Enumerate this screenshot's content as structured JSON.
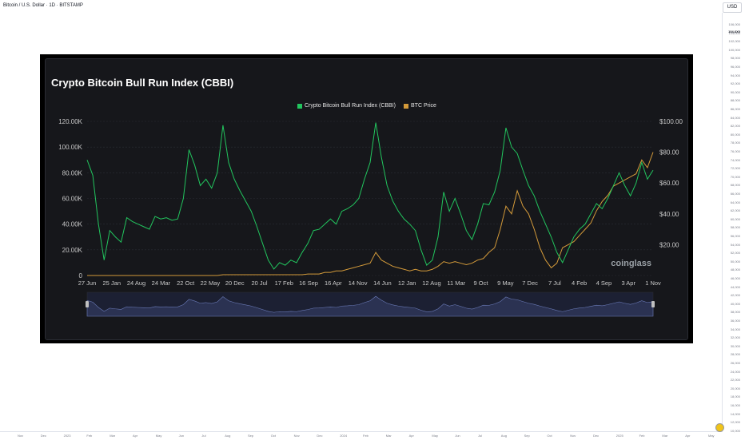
{
  "tv": {
    "symbol": "Bitcoin / U.S. Dollar · 1D · BITSTAMP",
    "currency_label": "USD",
    "price_axis_labels": [
      "106,000",
      "104,000",
      "102,000",
      "100,000",
      "98,000",
      "96,000",
      "94,000",
      "92,000",
      "90,000",
      "88,000",
      "86,000",
      "84,000",
      "82,000",
      "80,000",
      "78,000",
      "76,000",
      "74,000",
      "72,000",
      "70,000",
      "68,000",
      "66,000",
      "64,000",
      "62,000",
      "60,000",
      "58,000",
      "56,000",
      "54,000",
      "52,000",
      "50,000",
      "48,000",
      "46,000",
      "44,000",
      "42,000",
      "40,000",
      "38,000",
      "36,000",
      "34,000",
      "32,000",
      "30,000",
      "28,000",
      "26,000",
      "24,000",
      "22,000",
      "20,000",
      "18,000",
      "16,000",
      "14,000",
      "12,000",
      "10,000"
    ],
    "price_marker": "104,6X0",
    "time_axis_labels": [
      "Nov",
      "Dec",
      "2023",
      "Feb",
      "Mar",
      "Apr",
      "May",
      "Jun",
      "Jul",
      "Aug",
      "Sep",
      "Oct",
      "Nov",
      "Dec",
      "2024",
      "Feb",
      "Mar",
      "Apr",
      "May",
      "Jun",
      "Jul",
      "Aug",
      "Sep",
      "Oct",
      "Nov",
      "Dec",
      "2025",
      "Feb",
      "Mar",
      "Apr",
      "May"
    ]
  },
  "chart_data": {
    "type": "line",
    "title": "Crypto Bitcoin Bull Run Index (CBBI)",
    "watermark": "coinglass",
    "x_ticks": [
      "27 Jun",
      "25 Jan",
      "24 Aug",
      "24 Mar",
      "22 Oct",
      "22 May",
      "20 Dec",
      "20 Jul",
      "17 Feb",
      "16 Sep",
      "16 Apr",
      "14 Nov",
      "14 Jun",
      "12 Jan",
      "12 Aug",
      "11 Mar",
      "9 Oct",
      "9 May",
      "7 Dec",
      "7 Jul",
      "4 Feb",
      "4 Sep",
      "3 Apr",
      "1 Nov"
    ],
    "y_left_ticks": [
      "0",
      "20.00K",
      "40.00K",
      "60.00K",
      "80.00K",
      "100.00K",
      "120.00K"
    ],
    "y_right_ticks": [
      "$20.00",
      "$40.00",
      "$60.00",
      "$80.00",
      "$100.00"
    ],
    "ylim_left": [
      0,
      120000
    ],
    "ylim_right": [
      0,
      100
    ],
    "grid": true,
    "legend_position": "top",
    "colors": {
      "cbbi": "#22c55e",
      "btc": "#d39a3a",
      "navigator": "#2b3252",
      "background": "#16171b"
    },
    "series": [
      {
        "name": "Crypto Bitcoin Bull Run Index (CBBI)",
        "axis": "left",
        "x": [
          0,
          1,
          2,
          3,
          4,
          5,
          6,
          7,
          8,
          9,
          10,
          11,
          12,
          13,
          14,
          15,
          16,
          17,
          18,
          19,
          20,
          21,
          22,
          23,
          24,
          25,
          26,
          27,
          28,
          29,
          30,
          31,
          32,
          33,
          34,
          35,
          36,
          37,
          38,
          39,
          40,
          41,
          42,
          43,
          44,
          45,
          46,
          47,
          48,
          49,
          50,
          51,
          52,
          53,
          54,
          55,
          56,
          57,
          58,
          59,
          60,
          61,
          62,
          63,
          64,
          65,
          66,
          67,
          68,
          69,
          70,
          71,
          72,
          73,
          74,
          75,
          76,
          77,
          78,
          79,
          80,
          81,
          82,
          83,
          84,
          85,
          86,
          87,
          88,
          89,
          90,
          91,
          92,
          93,
          94,
          95,
          96,
          97,
          98,
          99,
          100
        ],
        "values": [
          90000,
          78000,
          40000,
          12000,
          35000,
          30000,
          26000,
          45000,
          42000,
          40000,
          38000,
          36000,
          46000,
          44000,
          45000,
          43000,
          44000,
          60000,
          98000,
          86000,
          70000,
          75000,
          68000,
          80000,
          117000,
          88000,
          75000,
          66000,
          58000,
          50000,
          38000,
          25000,
          12000,
          5000,
          10000,
          8000,
          12000,
          10000,
          18000,
          25000,
          35000,
          36000,
          40000,
          44000,
          40000,
          50000,
          52000,
          55000,
          60000,
          75000,
          88000,
          119000,
          92000,
          70000,
          58000,
          50000,
          44000,
          40000,
          35000,
          20000,
          8000,
          12000,
          30000,
          65000,
          50000,
          60000,
          48000,
          35000,
          28000,
          40000,
          56000,
          55000,
          65000,
          82000,
          115000,
          100000,
          95000,
          82000,
          70000,
          62000,
          50000,
          40000,
          30000,
          18000,
          10000,
          20000,
          30000,
          36000,
          40000,
          48000,
          56000,
          52000,
          60000,
          70000,
          80000,
          70000,
          62000,
          72000,
          88000,
          75000,
          82000
        ]
      },
      {
        "name": "BTC Price",
        "axis": "right",
        "x": [
          0,
          1,
          2,
          3,
          4,
          5,
          6,
          7,
          8,
          9,
          10,
          11,
          12,
          13,
          14,
          15,
          16,
          17,
          18,
          19,
          20,
          21,
          22,
          23,
          24,
          25,
          26,
          27,
          28,
          29,
          30,
          31,
          32,
          33,
          34,
          35,
          36,
          37,
          38,
          39,
          40,
          41,
          42,
          43,
          44,
          45,
          46,
          47,
          48,
          49,
          50,
          51,
          52,
          53,
          54,
          55,
          56,
          57,
          58,
          59,
          60,
          61,
          62,
          63,
          64,
          65,
          66,
          67,
          68,
          69,
          70,
          71,
          72,
          73,
          74,
          75,
          76,
          77,
          78,
          79,
          80,
          81,
          82,
          83,
          84,
          85,
          86,
          87,
          88,
          89,
          90,
          91,
          92,
          93,
          94,
          95,
          96,
          97,
          98,
          99,
          100
        ],
        "values": [
          0,
          0,
          0,
          0,
          0,
          0,
          0,
          0,
          0,
          0,
          0,
          0,
          0,
          0,
          0,
          0,
          0,
          0,
          0,
          0,
          0,
          0,
          0,
          0,
          0.5,
          0.5,
          0.5,
          0.5,
          0.5,
          0.5,
          0.5,
          0.5,
          0.5,
          0.5,
          0.5,
          0.5,
          0.5,
          0.5,
          0.5,
          1,
          1,
          1,
          2,
          2,
          3,
          3,
          4,
          5,
          6,
          7,
          8,
          15,
          10,
          8,
          6,
          5,
          4,
          3,
          4,
          3,
          3,
          4,
          6,
          9,
          8,
          9,
          8,
          7,
          8,
          10,
          11,
          15,
          18,
          30,
          45,
          40,
          55,
          45,
          40,
          30,
          18,
          10,
          5,
          8,
          18,
          20,
          22,
          26,
          30,
          34,
          42,
          48,
          52,
          58,
          60,
          62,
          64,
          66,
          75,
          70,
          80
        ]
      }
    ]
  }
}
